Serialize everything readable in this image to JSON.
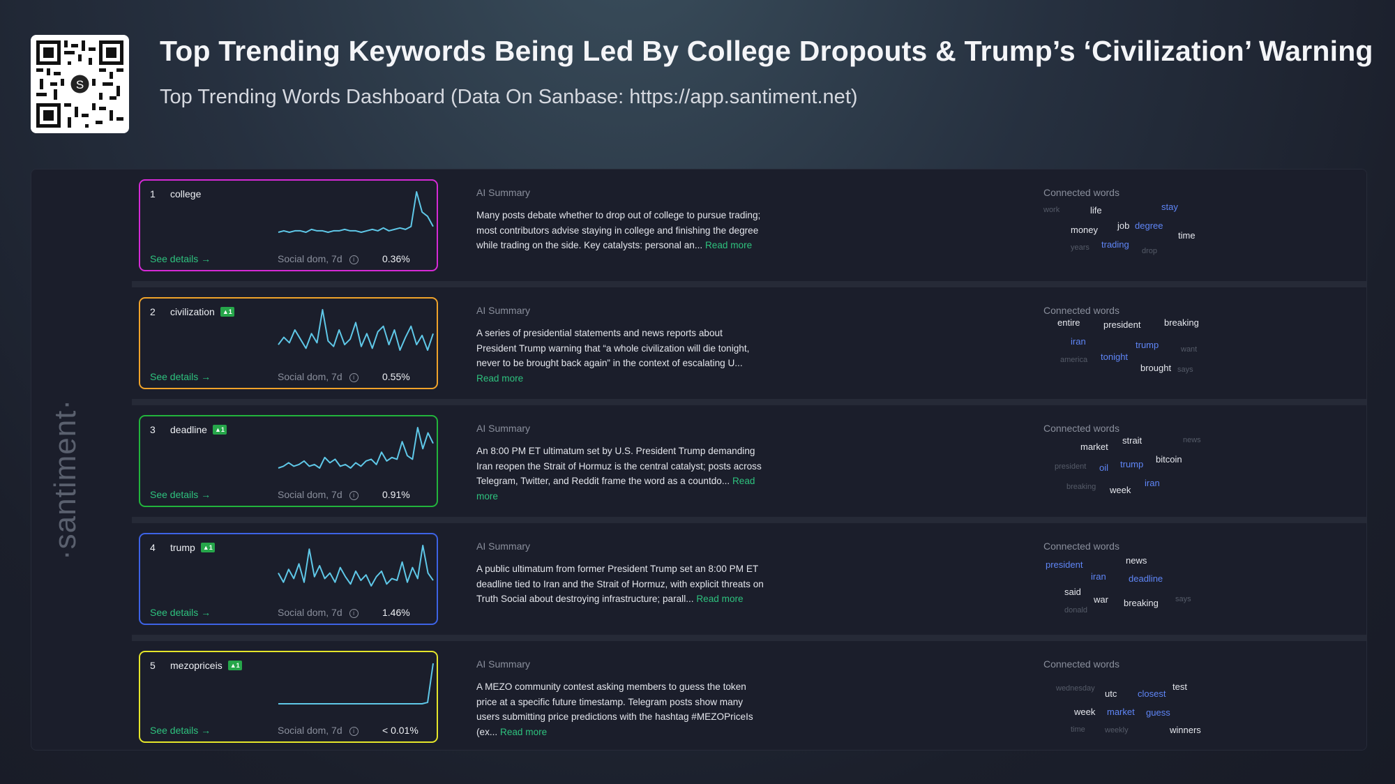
{
  "header": {
    "title": "Top Trending Keywords Being Led By College Dropouts & Trump’s ‘Civilization’ Warning",
    "subtitle": "Top Trending Words Dashboard (Data On Sanbase: https://app.santiment.net)"
  },
  "brand_label": "·santiment·",
  "labels": {
    "see_details": "See details →",
    "social_dom": "Social dom, 7d",
    "ai_summary": "AI Summary",
    "connected_words": "Connected words",
    "read_more": "Read more",
    "info_icon": "i"
  },
  "colors": {
    "card_1": "#d62ad6",
    "card_2": "#f0a32a",
    "card_3": "#22b43c",
    "card_4": "#3d63e6",
    "card_5": "#e5e52a",
    "sparkline": "#5fc8e8",
    "accent_green": "#2ec27e",
    "connected_blue": "#5f86f7"
  },
  "rows": [
    {
      "rank": "1",
      "word": "college",
      "badge": "",
      "social_dom": "0.36%",
      "series": [
        2,
        3,
        2,
        3,
        3,
        2,
        4,
        3,
        3,
        2,
        3,
        3,
        4,
        3,
        3,
        2,
        3,
        4,
        3,
        5,
        3,
        4,
        5,
        4,
        6,
        30,
        16,
        13,
        6
      ],
      "summary": "Many posts debate whether to drop out of college to pursue trading; most contributors advise staying in college and finishing the degree while trading on the side. Key catalysts: personal an...",
      "connected": [
        {
          "text": "work",
          "style": "g"
        },
        {
          "text": "life",
          "style": "w"
        },
        {
          "text": "stay",
          "style": "b"
        },
        {
          "text": "money",
          "style": "w"
        },
        {
          "text": "job",
          "style": "w"
        },
        {
          "text": "degree",
          "style": "b"
        },
        {
          "text": "time",
          "style": "w"
        },
        {
          "text": "years",
          "style": "g"
        },
        {
          "text": "trading",
          "style": "b"
        },
        {
          "text": "drop",
          "style": "g"
        }
      ]
    },
    {
      "rank": "2",
      "word": "civilization",
      "badge": "▲1",
      "social_dom": "0.55%",
      "series": [
        6,
        10,
        7,
        14,
        9,
        4,
        12,
        7,
        25,
        8,
        5,
        14,
        6,
        9,
        18,
        5,
        12,
        4,
        13,
        16,
        6,
        14,
        3,
        10,
        16,
        6,
        11,
        3,
        12
      ],
      "summary": "A series of presidential statements and news reports about President Trump warning that “a whole civilization will die tonight, never to be brought back again” in the context of escalating U...",
      "connected": [
        {
          "text": "entire",
          "style": "w"
        },
        {
          "text": "president",
          "style": "w"
        },
        {
          "text": "breaking",
          "style": "w"
        },
        {
          "text": "iran",
          "style": "b"
        },
        {
          "text": "trump",
          "style": "b"
        },
        {
          "text": "want",
          "style": "g"
        },
        {
          "text": "america",
          "style": "g"
        },
        {
          "text": "tonight",
          "style": "b"
        },
        {
          "text": "brought",
          "style": "w"
        },
        {
          "text": "says",
          "style": "g"
        }
      ]
    },
    {
      "rank": "3",
      "word": "deadline",
      "badge": "▲1",
      "social_dom": "0.91%",
      "series": [
        3,
        4,
        6,
        4,
        5,
        7,
        4,
        5,
        3,
        9,
        6,
        8,
        4,
        5,
        3,
        6,
        4,
        7,
        8,
        5,
        12,
        7,
        9,
        8,
        18,
        10,
        8,
        26,
        14,
        23,
        17
      ],
      "summary": "An 8:00 PM ET ultimatum set by U.S. President Trump demanding Iran reopen the Strait of Hormuz is the central catalyst; posts across Telegram, Twitter, and Reddit frame the word as a countdo...",
      "connected": [
        {
          "text": "strait",
          "style": "w"
        },
        {
          "text": "news",
          "style": "g"
        },
        {
          "text": "market",
          "style": "w"
        },
        {
          "text": "bitcoin",
          "style": "w"
        },
        {
          "text": "president",
          "style": "g"
        },
        {
          "text": "oil",
          "style": "b"
        },
        {
          "text": "trump",
          "style": "b"
        },
        {
          "text": "iran",
          "style": "b"
        },
        {
          "text": "breaking",
          "style": "g"
        },
        {
          "text": "week",
          "style": "w"
        }
      ]
    },
    {
      "rank": "4",
      "word": "trump",
      "badge": "▲1",
      "social_dom": "1.46%",
      "series": [
        11,
        6,
        13,
        8,
        16,
        6,
        24,
        9,
        15,
        8,
        11,
        6,
        14,
        9,
        5,
        12,
        7,
        10,
        4,
        9,
        12,
        5,
        8,
        7,
        17,
        6,
        14,
        8,
        26,
        11,
        7
      ],
      "summary": "A public ultimatum from former President Trump set an 8:00 PM ET deadline tied to Iran and the Strait of Hormuz, with explicit threats on Truth Social about destroying infrastructure; parall...",
      "connected": [
        {
          "text": "president",
          "style": "b"
        },
        {
          "text": "news",
          "style": "w"
        },
        {
          "text": "iran",
          "style": "b"
        },
        {
          "text": "deadline",
          "style": "b"
        },
        {
          "text": "said",
          "style": "w"
        },
        {
          "text": "war",
          "style": "w"
        },
        {
          "text": "breaking",
          "style": "w"
        },
        {
          "text": "says",
          "style": "g"
        },
        {
          "text": "donald",
          "style": "g"
        }
      ]
    },
    {
      "rank": "5",
      "word": "mezopriceis",
      "badge": "▲1",
      "social_dom": "< 0.01%",
      "series": [
        0,
        0,
        0,
        0,
        0,
        0,
        0,
        0,
        0,
        0,
        0,
        0,
        0,
        0,
        0,
        0,
        0,
        0,
        0,
        0,
        0,
        0,
        0,
        0,
        0,
        0,
        0,
        1,
        30
      ],
      "summary": "A MEZO community contest asking members to guess the token price at a specific future timestamp. Telegram posts show many users submitting price predictions with the hashtag #MEZOPriceIs (ex...",
      "connected": [
        {
          "text": "wednesday",
          "style": "g"
        },
        {
          "text": "test",
          "style": "w"
        },
        {
          "text": "utc",
          "style": "w"
        },
        {
          "text": "closest",
          "style": "b"
        },
        {
          "text": "week",
          "style": "w"
        },
        {
          "text": "market",
          "style": "b"
        },
        {
          "text": "guess",
          "style": "b"
        },
        {
          "text": "time",
          "style": "g"
        },
        {
          "text": "weekly",
          "style": "g"
        },
        {
          "text": "winners",
          "style": "w"
        }
      ]
    }
  ]
}
